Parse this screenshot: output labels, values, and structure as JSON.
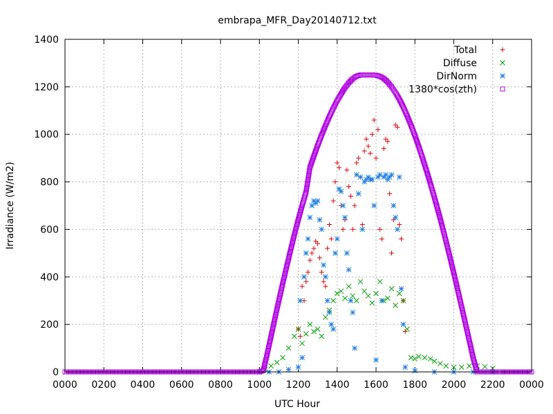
{
  "chart_data": {
    "type": "scatter",
    "title": "embrapa_MFR_Day20140712.txt",
    "xlabel": "UTC Hour",
    "ylabel": "Irradiance (W/m2)",
    "xlim": [
      0,
      24
    ],
    "ylim": [
      0,
      1400
    ],
    "grid": true,
    "legend_position": "top-right",
    "x_ticks": [
      {
        "value": 0,
        "label": "0000"
      },
      {
        "value": 2,
        "label": "0200"
      },
      {
        "value": 4,
        "label": "0400"
      },
      {
        "value": 6,
        "label": "0600"
      },
      {
        "value": 8,
        "label": "0800"
      },
      {
        "value": 10,
        "label": "1000"
      },
      {
        "value": 12,
        "label": "1200"
      },
      {
        "value": 14,
        "label": "1400"
      },
      {
        "value": 16,
        "label": "1600"
      },
      {
        "value": 18,
        "label": "1800"
      },
      {
        "value": 20,
        "label": "2000"
      },
      {
        "value": 22,
        "label": "2200"
      },
      {
        "value": 24,
        "label": "0000"
      }
    ],
    "y_ticks": [
      0,
      200,
      400,
      600,
      800,
      1000,
      1200,
      1400
    ],
    "series": [
      {
        "name": "Total",
        "marker": "+",
        "color": "#e00000",
        "x": [
          12.0,
          12.1,
          12.2,
          12.3,
          12.4,
          12.5,
          12.6,
          12.7,
          12.8,
          12.9,
          13.0,
          13.1,
          13.2,
          13.3,
          13.4,
          13.5,
          13.6,
          13.7,
          13.8,
          13.9,
          14.0,
          14.1,
          14.2,
          14.3,
          14.4,
          14.5,
          14.6,
          14.7,
          14.8,
          14.9,
          15.0,
          15.1,
          15.2,
          15.3,
          15.4,
          15.5,
          15.6,
          15.7,
          15.8,
          15.9,
          16.0,
          16.1,
          16.2,
          16.3,
          16.4,
          16.5,
          16.6,
          16.7,
          16.8,
          16.9,
          17.0,
          17.1,
          17.2,
          17.3,
          17.4,
          17.5
        ],
        "y": [
          180,
          150,
          360,
          300,
          380,
          420,
          470,
          500,
          520,
          550,
          540,
          480,
          420,
          380,
          360,
          520,
          620,
          560,
          720,
          800,
          880,
          860,
          700,
          600,
          640,
          850,
          780,
          740,
          600,
          700,
          880,
          900,
          820,
          620,
          930,
          980,
          950,
          920,
          1000,
          1060,
          900,
          1020,
          600,
          560,
          940,
          980,
          970,
          750,
          500,
          640,
          1040,
          1030,
          620,
          560,
          300,
          170
        ]
      },
      {
        "name": "Diffuse",
        "marker": "x",
        "color": "#00a000",
        "x": [
          10.0,
          10.3,
          10.6,
          10.9,
          11.2,
          11.5,
          11.8,
          12.0,
          12.2,
          12.4,
          12.6,
          12.8,
          13.0,
          13.2,
          13.4,
          13.6,
          13.8,
          14.0,
          14.2,
          14.4,
          14.6,
          14.8,
          15.0,
          15.2,
          15.4,
          15.6,
          15.8,
          16.0,
          16.2,
          16.4,
          16.6,
          16.8,
          17.0,
          17.2,
          17.4,
          17.6,
          17.8,
          18.0,
          18.2,
          18.5,
          18.8,
          19.0,
          19.3,
          19.6,
          20.0,
          20.4,
          20.8,
          21.2,
          21.6,
          22.0
        ],
        "y": [
          0,
          10,
          25,
          40,
          60,
          100,
          150,
          180,
          120,
          160,
          200,
          170,
          180,
          150,
          230,
          260,
          300,
          330,
          340,
          310,
          360,
          320,
          300,
          380,
          340,
          320,
          290,
          330,
          380,
          300,
          310,
          350,
          280,
          330,
          300,
          180,
          60,
          55,
          65,
          60,
          55,
          45,
          35,
          25,
          20,
          20,
          25,
          25,
          22,
          15
        ]
      },
      {
        "name": "DirNorm",
        "marker": "*",
        "color": "#1e7fe0",
        "x": [
          10.0,
          10.5,
          11.0,
          11.5,
          12.0,
          12.1,
          12.2,
          12.3,
          12.4,
          12.5,
          12.6,
          12.7,
          12.8,
          12.9,
          13.0,
          13.1,
          13.2,
          13.3,
          13.4,
          13.5,
          13.6,
          13.7,
          13.8,
          13.9,
          14.0,
          14.1,
          14.2,
          14.3,
          14.4,
          14.5,
          14.6,
          14.7,
          14.8,
          14.9,
          15.0,
          15.1,
          15.2,
          15.3,
          15.4,
          15.5,
          15.6,
          15.7,
          15.8,
          15.9,
          16.0,
          16.1,
          16.2,
          16.3,
          16.4,
          16.5,
          16.6,
          16.7,
          16.8,
          16.9,
          17.0,
          17.1,
          17.2,
          17.3,
          17.4,
          17.5,
          18.0,
          19.0,
          20.0,
          21.0,
          22.0
        ],
        "y": [
          0,
          0,
          0,
          10,
          20,
          300,
          60,
          400,
          500,
          560,
          650,
          700,
          720,
          710,
          720,
          640,
          600,
          450,
          400,
          300,
          250,
          200,
          180,
          500,
          560,
          770,
          760,
          700,
          650,
          500,
          430,
          300,
          250,
          100,
          830,
          750,
          820,
          600,
          800,
          810,
          820,
          810,
          810,
          700,
          50,
          820,
          830,
          300,
          820,
          830,
          810,
          820,
          830,
          700,
          650,
          600,
          820,
          350,
          200,
          20,
          5,
          0,
          0,
          0,
          0
        ]
      },
      {
        "name": "1380*cos(zth)",
        "marker": "square",
        "color": "#b000e0",
        "x": [
          0,
          2,
          4,
          6,
          8,
          10,
          10.2,
          10.4,
          10.6,
          10.8,
          11.0,
          11.2,
          11.4,
          11.6,
          11.8,
          12.0,
          12.2,
          12.4,
          12.6,
          12.8,
          13.0,
          13.2,
          13.4,
          13.6,
          13.8,
          14.0,
          14.2,
          14.4,
          14.6,
          14.8,
          15.0,
          15.2,
          15.4,
          15.6,
          15.8,
          16.0,
          16.2,
          16.4,
          16.6,
          16.8,
          17.0,
          17.2,
          17.4,
          17.6,
          17.8,
          18.0,
          18.2,
          18.4,
          18.6,
          18.8,
          19.0,
          19.2,
          19.4,
          19.6,
          19.8,
          20.0,
          20.2,
          20.4,
          20.6,
          20.8,
          21.0,
          21.2,
          21.4,
          21.6,
          21.8,
          22.0,
          22.2,
          22.4,
          24
        ],
        "y": [
          0,
          0,
          0,
          0,
          0,
          0,
          6,
          75,
          150,
          226,
          300,
          372,
          442,
          511,
          578,
          641,
          701,
          757,
          861,
          908,
          954,
          997,
          1037,
          1075,
          1110,
          1142,
          1170,
          1196,
          1217,
          1234,
          1245,
          1250,
          1250,
          1250,
          1250,
          1249,
          1244,
          1235,
          1220,
          1200,
          1176,
          1148,
          1115,
          1078,
          1038,
          995,
          948,
          898,
          846,
          792,
          735,
          676,
          614,
          550,
          484,
          416,
          346,
          275,
          203,
          131,
          58,
          0,
          0,
          0,
          0,
          0,
          0,
          0,
          0
        ]
      }
    ]
  }
}
